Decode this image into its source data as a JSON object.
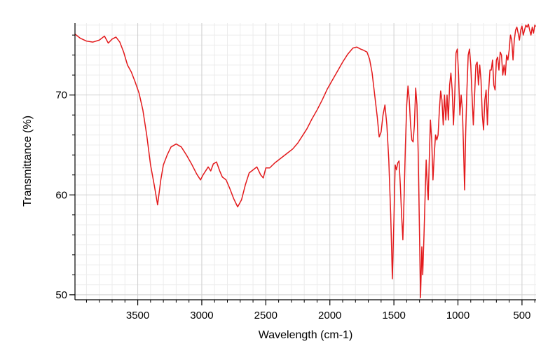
{
  "chart_data": {
    "type": "line",
    "title": "",
    "xlabel": "Wavelength (cm-1)",
    "ylabel": "Transmittance (%)",
    "xlim": [
      3990,
      390
    ],
    "ylim": [
      49.5,
      77.2
    ],
    "x_reversed": true,
    "x_ticks": [
      3500,
      3000,
      2500,
      2000,
      1500,
      1000,
      500
    ],
    "y_ticks": [
      50,
      60,
      70
    ],
    "grid": true,
    "legend": "none",
    "series": [
      {
        "color": "#e31a1c",
        "points": [
          [
            3990,
            76.1
          ],
          [
            3950,
            75.7
          ],
          [
            3900,
            75.4
          ],
          [
            3850,
            75.3
          ],
          [
            3800,
            75.5
          ],
          [
            3760,
            75.9
          ],
          [
            3730,
            75.2
          ],
          [
            3700,
            75.6
          ],
          [
            3670,
            75.8
          ],
          [
            3640,
            75.3
          ],
          [
            3610,
            74.3
          ],
          [
            3580,
            73.0
          ],
          [
            3550,
            72.3
          ],
          [
            3520,
            71.3
          ],
          [
            3490,
            70.2
          ],
          [
            3460,
            68.5
          ],
          [
            3430,
            66.0
          ],
          [
            3400,
            63.0
          ],
          [
            3370,
            60.9
          ],
          [
            3345,
            59.0
          ],
          [
            3320,
            61.5
          ],
          [
            3300,
            63.0
          ],
          [
            3270,
            64.0
          ],
          [
            3240,
            64.8
          ],
          [
            3200,
            65.1
          ],
          [
            3160,
            64.8
          ],
          [
            3120,
            64.0
          ],
          [
            3080,
            63.1
          ],
          [
            3040,
            62.1
          ],
          [
            3010,
            61.5
          ],
          [
            2990,
            62.0
          ],
          [
            2970,
            62.4
          ],
          [
            2950,
            62.8
          ],
          [
            2930,
            62.4
          ],
          [
            2910,
            63.1
          ],
          [
            2885,
            63.3
          ],
          [
            2860,
            62.4
          ],
          [
            2840,
            61.8
          ],
          [
            2810,
            61.5
          ],
          [
            2780,
            60.6
          ],
          [
            2750,
            59.6
          ],
          [
            2720,
            58.8
          ],
          [
            2690,
            59.5
          ],
          [
            2660,
            61.0
          ],
          [
            2630,
            62.2
          ],
          [
            2600,
            62.5
          ],
          [
            2570,
            62.8
          ],
          [
            2540,
            62.0
          ],
          [
            2520,
            61.7
          ],
          [
            2500,
            62.7
          ],
          [
            2470,
            62.7
          ],
          [
            2430,
            63.2
          ],
          [
            2380,
            63.7
          ],
          [
            2330,
            64.2
          ],
          [
            2290,
            64.6
          ],
          [
            2250,
            65.2
          ],
          [
            2220,
            65.8
          ],
          [
            2180,
            66.6
          ],
          [
            2140,
            67.6
          ],
          [
            2100,
            68.5
          ],
          [
            2060,
            69.5
          ],
          [
            2020,
            70.6
          ],
          [
            1980,
            71.5
          ],
          [
            1940,
            72.4
          ],
          [
            1900,
            73.3
          ],
          [
            1860,
            74.1
          ],
          [
            1820,
            74.7
          ],
          [
            1790,
            74.8
          ],
          [
            1760,
            74.6
          ],
          [
            1740,
            74.5
          ],
          [
            1710,
            74.3
          ],
          [
            1690,
            73.6
          ],
          [
            1670,
            72.2
          ],
          [
            1650,
            70.0
          ],
          [
            1630,
            67.8
          ],
          [
            1615,
            65.8
          ],
          [
            1600,
            66.3
          ],
          [
            1585,
            68.0
          ],
          [
            1570,
            69.0
          ],
          [
            1555,
            67.0
          ],
          [
            1540,
            63.5
          ],
          [
            1525,
            58.0
          ],
          [
            1512,
            51.6
          ],
          [
            1500,
            57.5
          ],
          [
            1490,
            63.0
          ],
          [
            1480,
            62.5
          ],
          [
            1470,
            63.2
          ],
          [
            1460,
            63.4
          ],
          [
            1450,
            61.0
          ],
          [
            1440,
            58.0
          ],
          [
            1430,
            55.5
          ],
          [
            1420,
            60.0
          ],
          [
            1410,
            65.0
          ],
          [
            1400,
            69.0
          ],
          [
            1390,
            70.9
          ],
          [
            1380,
            69.5
          ],
          [
            1370,
            67.0
          ],
          [
            1360,
            65.5
          ],
          [
            1350,
            65.3
          ],
          [
            1340,
            67.0
          ],
          [
            1330,
            70.7
          ],
          [
            1320,
            69.0
          ],
          [
            1310,
            64.0
          ],
          [
            1300,
            56.0
          ],
          [
            1292,
            49.7
          ],
          [
            1282,
            54.8
          ],
          [
            1275,
            52.0
          ],
          [
            1265,
            56.0
          ],
          [
            1255,
            60.5
          ],
          [
            1248,
            63.5
          ],
          [
            1240,
            61.0
          ],
          [
            1232,
            59.5
          ],
          [
            1225,
            63.0
          ],
          [
            1215,
            67.5
          ],
          [
            1205,
            65.5
          ],
          [
            1195,
            61.5
          ],
          [
            1185,
            64.0
          ],
          [
            1175,
            66.0
          ],
          [
            1165,
            65.5
          ],
          [
            1155,
            66.0
          ],
          [
            1145,
            68.5
          ],
          [
            1135,
            70.4
          ],
          [
            1125,
            69.5
          ],
          [
            1115,
            67.0
          ],
          [
            1105,
            70.0
          ],
          [
            1095,
            67.5
          ],
          [
            1085,
            70.0
          ],
          [
            1075,
            67.5
          ],
          [
            1065,
            71.0
          ],
          [
            1055,
            72.2
          ],
          [
            1045,
            70.5
          ],
          [
            1035,
            67.0
          ],
          [
            1025,
            70.0
          ],
          [
            1015,
            74.2
          ],
          [
            1005,
            74.6
          ],
          [
            995,
            72.0
          ],
          [
            985,
            68.0
          ],
          [
            975,
            70.0
          ],
          [
            965,
            68.5
          ],
          [
            955,
            64.0
          ],
          [
            948,
            60.5
          ],
          [
            940,
            66.0
          ],
          [
            930,
            70.5
          ],
          [
            920,
            74.0
          ],
          [
            910,
            74.6
          ],
          [
            900,
            73.0
          ],
          [
            890,
            70.0
          ],
          [
            880,
            67.0
          ],
          [
            870,
            70.0
          ],
          [
            860,
            73.0
          ],
          [
            850,
            73.3
          ],
          [
            840,
            71.0
          ],
          [
            830,
            73.0
          ],
          [
            820,
            71.5
          ],
          [
            810,
            68.0
          ],
          [
            800,
            66.5
          ],
          [
            790,
            69.5
          ],
          [
            780,
            70.5
          ],
          [
            770,
            67.0
          ],
          [
            760,
            70.5
          ],
          [
            750,
            72.5
          ],
          [
            740,
            72.5
          ],
          [
            730,
            73.5
          ],
          [
            720,
            71.0
          ],
          [
            710,
            70.5
          ],
          [
            700,
            73.5
          ],
          [
            690,
            73.8
          ],
          [
            680,
            72.5
          ],
          [
            670,
            74.3
          ],
          [
            660,
            74.0
          ],
          [
            650,
            72.0
          ],
          [
            640,
            73.0
          ],
          [
            630,
            72.0
          ],
          [
            620,
            74.0
          ],
          [
            610,
            73.5
          ],
          [
            600,
            74.5
          ],
          [
            590,
            76.0
          ],
          [
            580,
            75.5
          ],
          [
            570,
            73.5
          ],
          [
            560,
            75.5
          ],
          [
            550,
            76.5
          ],
          [
            540,
            76.8
          ],
          [
            530,
            76.2
          ],
          [
            520,
            75.5
          ],
          [
            510,
            76.5
          ],
          [
            500,
            76.9
          ],
          [
            490,
            76.0
          ],
          [
            480,
            76.5
          ],
          [
            470,
            77.0
          ],
          [
            460,
            76.8
          ],
          [
            450,
            77.1
          ],
          [
            440,
            76.5
          ],
          [
            430,
            76.0
          ],
          [
            420,
            76.8
          ],
          [
            410,
            76.2
          ],
          [
            400,
            77.0
          ],
          [
            395,
            76.9
          ]
        ]
      }
    ]
  }
}
